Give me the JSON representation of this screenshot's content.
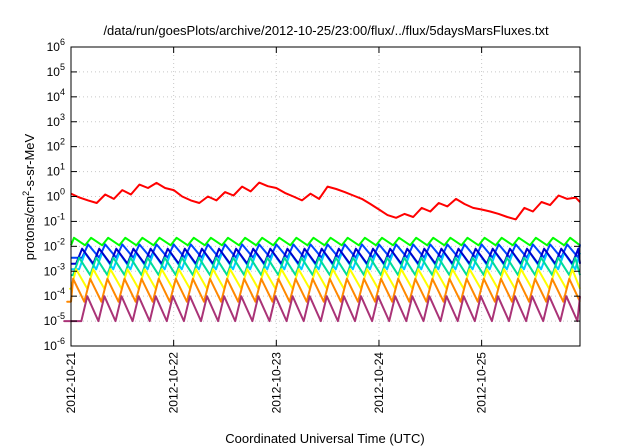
{
  "chart_data": {
    "type": "line",
    "title": "/data/run/goesPlots/archive/2012-10-25/23:00/flux/../flux/5daysMarsFluxes.txt",
    "xlabel": "Coordinated Universal Time (UTC)",
    "ylabel": {
      "base": "protons/cm",
      "sup": "2",
      "rest": "-s-sr-MeV"
    },
    "yscale": "log",
    "ylim": [
      1e-06,
      1000000.0
    ],
    "yticks": [
      -6,
      -5,
      -4,
      -3,
      -2,
      -1,
      0,
      1,
      2,
      3,
      4,
      5,
      6
    ],
    "xlim": [
      "2012-10-21",
      "2012-10-25T23:00"
    ],
    "xticks": [
      "2012-10-21",
      "2012-10-22",
      "2012-10-23",
      "2012-10-24",
      "2012-10-25"
    ],
    "grid": true,
    "series": [
      {
        "color": "#ff0000",
        "x": [
          "2012-10-21T00:00",
          "2012-10-21T02:00",
          "2012-10-21T04:00",
          "2012-10-21T06:00",
          "2012-10-21T08:00",
          "2012-10-21T10:00",
          "2012-10-21T12:00",
          "2012-10-21T14:00",
          "2012-10-21T16:00",
          "2012-10-21T18:00",
          "2012-10-21T20:00",
          "2012-10-21T22:00",
          "2012-10-22T00:00",
          "2012-10-22T02:00",
          "2012-10-22T04:00",
          "2012-10-22T06:00",
          "2012-10-22T08:00",
          "2012-10-22T10:00",
          "2012-10-22T12:00",
          "2012-10-22T14:00",
          "2012-10-22T16:00",
          "2012-10-22T18:00",
          "2012-10-22T20:00",
          "2012-10-22T22:00",
          "2012-10-23T00:00",
          "2012-10-23T02:00",
          "2012-10-23T04:00",
          "2012-10-23T06:00",
          "2012-10-23T08:00",
          "2012-10-23T10:00",
          "2012-10-23T12:00",
          "2012-10-23T14:00",
          "2012-10-23T16:00",
          "2012-10-23T18:00",
          "2012-10-23T20:00",
          "2012-10-23T22:00",
          "2012-10-24T00:00",
          "2012-10-24T02:00",
          "2012-10-24T04:00",
          "2012-10-24T06:00",
          "2012-10-24T08:00",
          "2012-10-24T10:00",
          "2012-10-24T12:00",
          "2012-10-24T14:00",
          "2012-10-24T16:00",
          "2012-10-24T18:00",
          "2012-10-24T20:00",
          "2012-10-24T22:00",
          "2012-10-25T00:00",
          "2012-10-25T02:00",
          "2012-10-25T04:00",
          "2012-10-25T06:00",
          "2012-10-25T08:00",
          "2012-10-25T10:00",
          "2012-10-25T12:00",
          "2012-10-25T14:00",
          "2012-10-25T16:00",
          "2012-10-25T18:00",
          "2012-10-25T20:00",
          "2012-10-25T22:00",
          "2012-10-25T23:00"
        ],
        "values": [
          1.3,
          0.9,
          0.7,
          0.55,
          1.2,
          0.8,
          1.8,
          1.2,
          3.0,
          2.2,
          3.5,
          2.2,
          1.8,
          1.0,
          0.7,
          0.55,
          1.0,
          0.7,
          1.5,
          1.1,
          2.5,
          1.6,
          3.6,
          2.6,
          2.2,
          1.4,
          1.0,
          0.7,
          1.3,
          0.8,
          2.5,
          2.0,
          1.5,
          1.1,
          0.8,
          0.5,
          0.3,
          0.18,
          0.14,
          0.2,
          0.15,
          0.35,
          0.25,
          0.55,
          0.4,
          0.8,
          0.5,
          0.35,
          0.3,
          0.25,
          0.2,
          0.15,
          0.12,
          0.35,
          0.25,
          0.6,
          0.45,
          1.1,
          0.8,
          0.9,
          0.6
        ]
      },
      {
        "color": "#00ff00",
        "base": 0.011,
        "peak": 0.022
      },
      {
        "color": "#0044ff",
        "base": 0.0035,
        "peak": 0.012
      },
      {
        "color": "#00ccff",
        "base": 0.0012,
        "peak": 0.0055
      },
      {
        "color": "#0000cc",
        "base": 0.002,
        "peak": 0.008
      },
      {
        "color": "#00dd99",
        "base": 0.0007,
        "peak": 0.0035
      },
      {
        "color": "#ffff00",
        "base": 0.0002,
        "peak": 0.0012
      },
      {
        "color": "#ff8800",
        "base": 6e-05,
        "peak": 0.0005
      },
      {
        "color": "#aa3377",
        "base": 1e-05,
        "peak": 0.0001
      }
    ]
  }
}
